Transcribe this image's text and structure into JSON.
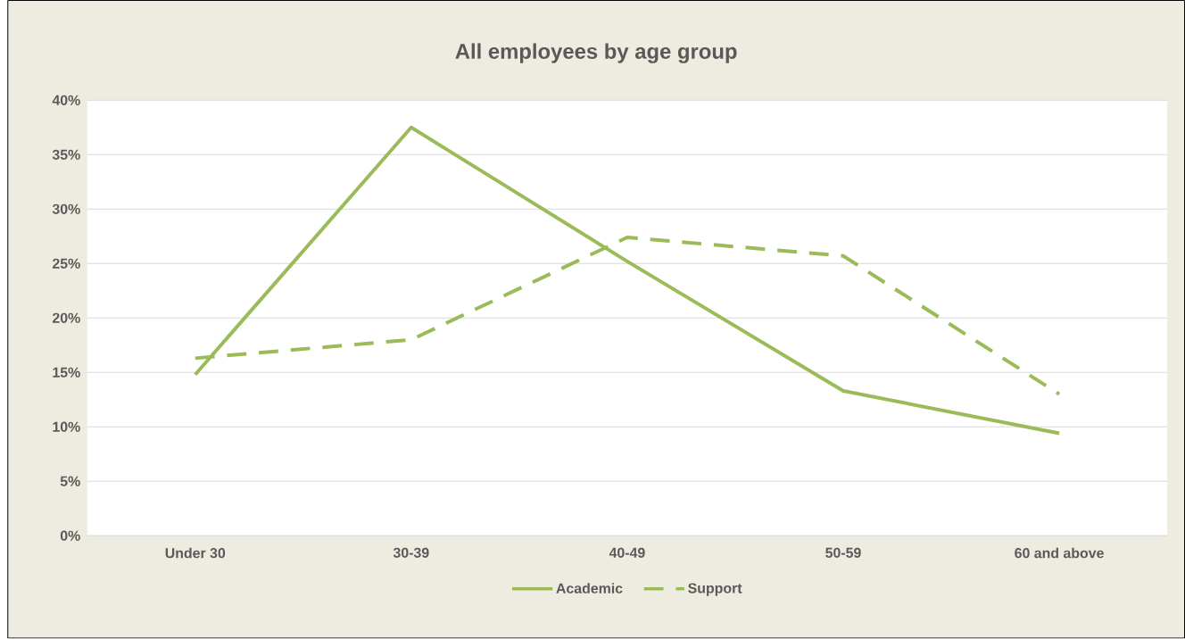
{
  "chart_data": {
    "type": "line",
    "title": "All employees by age group",
    "categories": [
      "Under 30",
      "30-39",
      "40-49",
      "50-59",
      "60 and above"
    ],
    "series": [
      {
        "name": "Academic",
        "color": "#9bbb59",
        "line_style": "solid",
        "values": [
          14.8,
          37.5,
          25.2,
          13.3,
          9.4
        ]
      },
      {
        "name": "Support",
        "color": "#9bbb59",
        "line_style": "dashed",
        "values": [
          16.3,
          18.0,
          27.4,
          25.7,
          13.0
        ]
      }
    ],
    "ylim": [
      0,
      40
    ],
    "yticks": [
      {
        "value": 0,
        "label": "0%"
      },
      {
        "value": 5,
        "label": "5%"
      },
      {
        "value": 10,
        "label": "10%"
      },
      {
        "value": 15,
        "label": "15%"
      },
      {
        "value": 20,
        "label": "20%"
      },
      {
        "value": 25,
        "label": "25%"
      },
      {
        "value": 30,
        "label": "30%"
      },
      {
        "value": 35,
        "label": "35%"
      },
      {
        "value": 40,
        "label": "40%"
      }
    ],
    "grid": "y",
    "legend": "bottom",
    "marker": "none"
  }
}
